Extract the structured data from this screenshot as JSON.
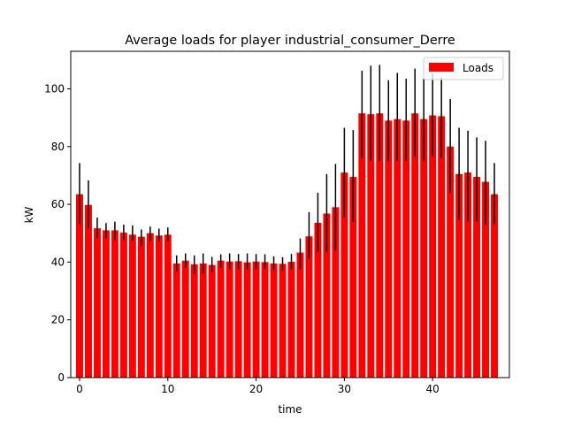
{
  "chart_data": {
    "type": "bar",
    "title": "Average loads for player industrial_consumer_Derre",
    "xlabel": "time",
    "ylabel": "kW",
    "xlim": [
      -1,
      48.7
    ],
    "ylim": [
      0,
      113
    ],
    "xticks": [
      0,
      10,
      20,
      30,
      40
    ],
    "yticks": [
      0,
      20,
      40,
      60,
      80,
      100
    ],
    "grid": false,
    "legend_position": "top-right",
    "bar_color": "#ff0000",
    "error_color": "#000000",
    "series": [
      {
        "name": "Loads",
        "x": [
          0,
          1,
          2,
          3,
          4,
          5,
          6,
          7,
          8,
          9,
          10,
          11,
          12,
          13,
          14,
          15,
          16,
          17,
          18,
          19,
          20,
          21,
          22,
          23,
          24,
          25,
          26,
          27,
          28,
          29,
          30,
          31,
          32,
          33,
          34,
          35,
          36,
          37,
          38,
          39,
          40,
          41,
          42,
          43,
          44,
          45,
          46,
          47
        ],
        "values": [
          63.5,
          59.8,
          51.7,
          51.0,
          51.0,
          50.2,
          49.5,
          48.8,
          50.0,
          49.2,
          49.5,
          39.5,
          40.5,
          39.2,
          39.5,
          39.0,
          40.5,
          40.2,
          40.3,
          39.9,
          40.2,
          40.0,
          39.5,
          39.4,
          40.1,
          43.3,
          48.9,
          53.6,
          56.8,
          59.0,
          71.0,
          69.5,
          91.5,
          91.2,
          91.5,
          89.0,
          89.5,
          89.0,
          91.5,
          89.5,
          90.8,
          90.5,
          80.0,
          70.5,
          71.0,
          69.5,
          67.8,
          63.5
        ],
        "err_low": [
          53.0,
          51.5,
          48.3,
          48.3,
          47.5,
          47.5,
          47.3,
          45.5,
          47.3,
          47.0,
          47.0,
          36.7,
          38.0,
          36.0,
          36.0,
          36.5,
          38.0,
          37.6,
          37.5,
          37.3,
          37.5,
          37.5,
          37.2,
          37.0,
          37.5,
          37.5,
          41.0,
          43.5,
          43.5,
          44.0,
          55.5,
          54.0,
          76.0,
          75.0,
          75.0,
          75.0,
          75.0,
          75.0,
          76.5,
          75.0,
          76.5,
          76.0,
          64.0,
          54.5,
          54.0,
          54.0,
          53.0,
          53.0
        ],
        "err_high": [
          74.3,
          68.3,
          55.4,
          53.5,
          54.0,
          53.0,
          52.7,
          51.3,
          52.3,
          51.6,
          52.0,
          42.3,
          43.0,
          42.3,
          43.0,
          41.8,
          42.7,
          43.0,
          42.8,
          43.0,
          42.8,
          42.7,
          42.0,
          41.7,
          42.8,
          48.2,
          57.3,
          64.0,
          70.5,
          74.0,
          86.5,
          85.7,
          106.3,
          108.0,
          108.3,
          103.0,
          105.5,
          103.5,
          107.0,
          103.5,
          105.5,
          104.0,
          96.5,
          86.5,
          85.5,
          83.2,
          82.0,
          74.3
        ]
      }
    ]
  }
}
